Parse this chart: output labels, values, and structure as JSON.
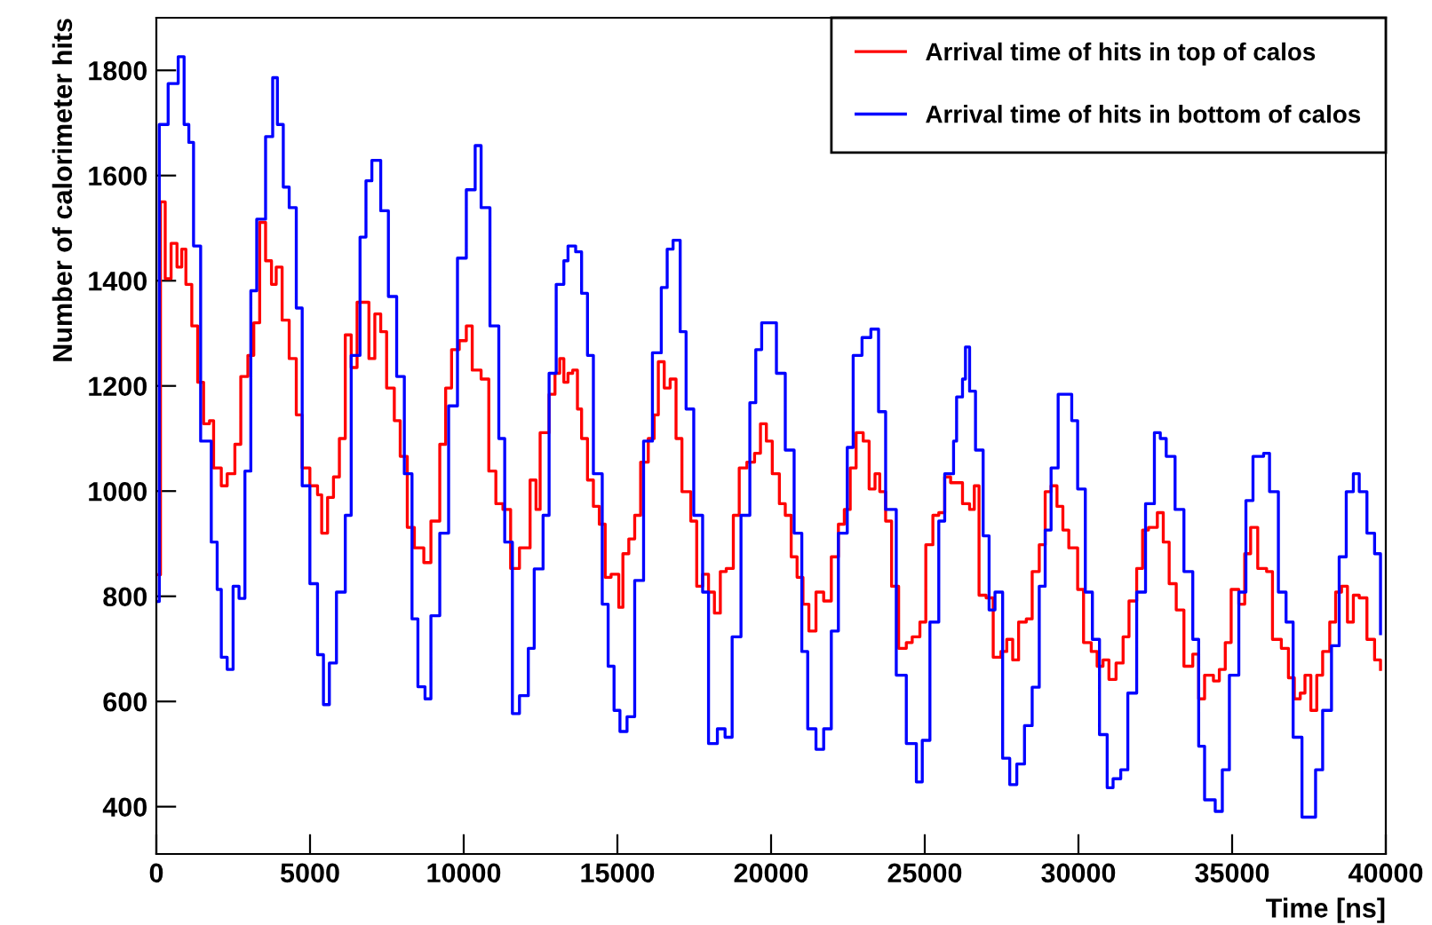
{
  "chart_data": {
    "type": "step",
    "xlabel": "Time [ns]",
    "ylabel": "Number of calorimeter hits",
    "xlim": [
      0,
      40000
    ],
    "ylim": [
      310,
      1900
    ],
    "xticks": [
      0,
      5000,
      10000,
      15000,
      20000,
      25000,
      30000,
      35000,
      40000
    ],
    "yticks": [
      400,
      600,
      800,
      1000,
      1200,
      1400,
      1600,
      1800
    ],
    "grid": false,
    "legend": "top right",
    "series": [
      {
        "name": "Arrival time of hits in top of calos",
        "color": "#ff0000",
        "x": [
          0,
          134,
          288,
          480,
          672,
          826,
          961,
          1153,
          1345,
          1537,
          1729,
          1863,
          2113,
          2305,
          2555,
          2747,
          2978,
          3170,
          3362,
          3554,
          3746,
          3900,
          4092,
          4322,
          4553,
          4745,
          4995,
          5244,
          5379,
          5571,
          5763,
          5955,
          6147,
          6339,
          6531,
          6724,
          6916,
          7108,
          7300,
          7492,
          7742,
          7934,
          8164,
          8395,
          8702,
          8933,
          9221,
          9413,
          9605,
          9855,
          10085,
          10277,
          10566,
          10816,
          11046,
          11276,
          11526,
          11814,
          12160,
          12352,
          12486,
          12778,
          12970,
          13124,
          13258,
          13393,
          13546,
          13700,
          13835,
          14027,
          14219,
          14411,
          14603,
          14795,
          15045,
          15179,
          15371,
          15563,
          15756,
          16005,
          16197,
          16332,
          16524,
          16716,
          16908,
          17100,
          17388,
          17581,
          17773,
          17965,
          18157,
          18349,
          18541,
          18772,
          18964,
          19213,
          19463,
          19655,
          19847,
          20039,
          20270,
          20462,
          20654,
          20846,
          21038,
          21230,
          21461,
          21711,
          21960,
          22190,
          22383,
          22575,
          22767,
          22998,
          23190,
          23382,
          23536,
          23727,
          23920,
          24150,
          24400,
          24592,
          24842,
          25034,
          25264,
          25456,
          25649,
          25841,
          26036,
          26228,
          26459,
          26612,
          26766,
          26997,
          27227,
          27477,
          27669,
          27861,
          28053,
          28303,
          28495,
          28725,
          28918,
          29110,
          29302,
          29494,
          29686,
          29974,
          30166,
          30416,
          30608,
          30800,
          30992,
          31223,
          31453,
          31645,
          31895,
          32087,
          32279,
          32567,
          32760,
          32952,
          33182,
          33432,
          33720,
          33912,
          34104,
          34392,
          34584,
          34777,
          34969,
          35218,
          35410,
          35602,
          35833,
          36121,
          36313,
          36601,
          36832,
          37024,
          37216,
          37370,
          37562,
          37754,
          37945,
          38176,
          38368,
          38560,
          38752,
          38944,
          39136,
          39386,
          39635,
          39828
        ],
        "values": [
          841,
          1550,
          1404,
          1471,
          1426,
          1460,
          1393,
          1314,
          1207,
          1128,
          1134,
          1044,
          1010,
          1033,
          1089,
          1218,
          1258,
          1320,
          1511,
          1438,
          1393,
          1426,
          1325,
          1252,
          1145,
          1044,
          1010,
          993,
          920,
          988,
          1027,
          1100,
          1297,
          1235,
          1359,
          1359,
          1252,
          1337,
          1303,
          1196,
          1134,
          1066,
          931,
          892,
          864,
          943,
          1089,
          1196,
          1269,
          1286,
          1314,
          1230,
          1213,
          1038,
          976,
          965,
          853,
          892,
          1021,
          965,
          1111,
          1184,
          1224,
          1252,
          1207,
          1224,
          1230,
          1156,
          1100,
          1021,
          971,
          937,
          836,
          842,
          779,
          881,
          909,
          954,
          1055,
          1100,
          1145,
          1246,
          1196,
          1213,
          1100,
          999,
          943,
          819,
          842,
          808,
          768,
          847,
          853,
          954,
          1044,
          1055,
          1072,
          1128,
          1095,
          1033,
          976,
          954,
          875,
          836,
          785,
          734,
          808,
          791,
          875,
          937,
          965,
          1044,
          1111,
          1095,
          1004,
          1033,
          999,
          943,
          819,
          701,
          712,
          723,
          751,
          898,
          954,
          959,
          1027,
          1016,
          1016,
          976,
          965,
          1010,
          802,
          797,
          684,
          695,
          718,
          679,
          751,
          757,
          847,
          898,
          999,
          1010,
          971,
          926,
          892,
          813,
          712,
          695,
          667,
          679,
          642,
          673,
          723,
          791,
          853,
          926,
          931,
          959,
          903,
          824,
          774,
          667,
          690,
          605,
          650,
          639,
          661,
          712,
          813,
          785,
          881,
          931,
          853,
          847,
          718,
          701,
          645,
          605,
          616,
          650,
          583,
          650,
          695,
          751,
          808,
          819,
          751,
          802,
          797,
          718,
          679,
          661
        ]
      },
      {
        "name": "Arrival time of hits in bottom of calos",
        "color": "#0000ff",
        "x": [
          0,
          96,
          384,
          711,
          903,
          1057,
          1210,
          1441,
          1787,
          1979,
          2113,
          2305,
          2497,
          2690,
          2882,
          3074,
          3266,
          3554,
          3785,
          3938,
          4130,
          4322,
          4553,
          4745,
          4995,
          5244,
          5437,
          5629,
          5860,
          6147,
          6339,
          6627,
          6820,
          7012,
          7300,
          7550,
          7819,
          8068,
          8318,
          8510,
          8741,
          8933,
          9221,
          9509,
          9797,
          10085,
          10373,
          10566,
          10854,
          11142,
          11334,
          11584,
          11814,
          12102,
          12294,
          12582,
          12778,
          13009,
          13258,
          13393,
          13642,
          13835,
          14027,
          14219,
          14507,
          14699,
          14891,
          15083,
          15314,
          15563,
          15852,
          16140,
          16428,
          16620,
          16812,
          17043,
          17235,
          17484,
          17773,
          17965,
          18253,
          18503,
          18733,
          19021,
          19309,
          19502,
          19694,
          19982,
          20174,
          20462,
          20750,
          21000,
          21192,
          21461,
          21711,
          21960,
          22190,
          22479,
          22671,
          22959,
          23247,
          23497,
          23727,
          24073,
          24400,
          24727,
          24919,
          25168,
          25456,
          25649,
          25937,
          26036,
          26228,
          26324,
          26459,
          26651,
          26900,
          27093,
          27285,
          27534,
          27765,
          27995,
          28245,
          28495,
          28725,
          28918,
          29110,
          29340,
          29590,
          29782,
          29974,
          30224,
          30454,
          30685,
          30935,
          31127,
          31376,
          31607,
          31895,
          32183,
          32471,
          32663,
          32856,
          33144,
          33432,
          33720,
          33912,
          34104,
          34450,
          34681,
          34911,
          35218,
          35449,
          35679,
          36025,
          36217,
          36505,
          36755,
          36985,
          37273,
          37523,
          37715,
          37945,
          38233,
          38483,
          38713,
          38944,
          39136,
          39386,
          39635,
          39828
        ],
        "values": [
          790,
          1697,
          1775,
          1826,
          1697,
          1663,
          1466,
          1095,
          903,
          813,
          684,
          661,
          819,
          796,
          1038,
          1381,
          1517,
          1674,
          1786,
          1697,
          1578,
          1539,
          1348,
          1010,
          824,
          689,
          594,
          673,
          808,
          954,
          1258,
          1483,
          1590,
          1629,
          1533,
          1370,
          1218,
          1033,
          757,
          628,
          605,
          763,
          920,
          1162,
          1443,
          1573,
          1657,
          1539,
          1314,
          1100,
          903,
          577,
          611,
          701,
          852,
          954,
          1224,
          1393,
          1438,
          1466,
          1455,
          1376,
          1258,
          1033,
          785,
          667,
          583,
          543,
          571,
          830,
          1095,
          1263,
          1387,
          1460,
          1477,
          1303,
          1156,
          954,
          808,
          520,
          548,
          532,
          723,
          954,
          1168,
          1269,
          1320,
          1320,
          1224,
          1078,
          920,
          695,
          548,
          509,
          548,
          734,
          920,
          1083,
          1258,
          1292,
          1308,
          1151,
          965,
          650,
          520,
          447,
          526,
          751,
          943,
          1033,
          1095,
          1179,
          1213,
          1274,
          1190,
          1078,
          915,
          774,
          808,
          492,
          442,
          481,
          554,
          627,
          819,
          926,
          1044,
          1184,
          1184,
          1134,
          1004,
          808,
          718,
          537,
          436,
          453,
          470,
          616,
          808,
          976,
          1111,
          1100,
          1066,
          965,
          847,
          718,
          515,
          413,
          391,
          470,
          650,
          808,
          982,
          1066,
          1072,
          999,
          808,
          751,
          532,
          380,
          380,
          470,
          583,
          706,
          875,
          999,
          1033,
          999,
          920,
          881,
          729
        ]
      }
    ]
  }
}
